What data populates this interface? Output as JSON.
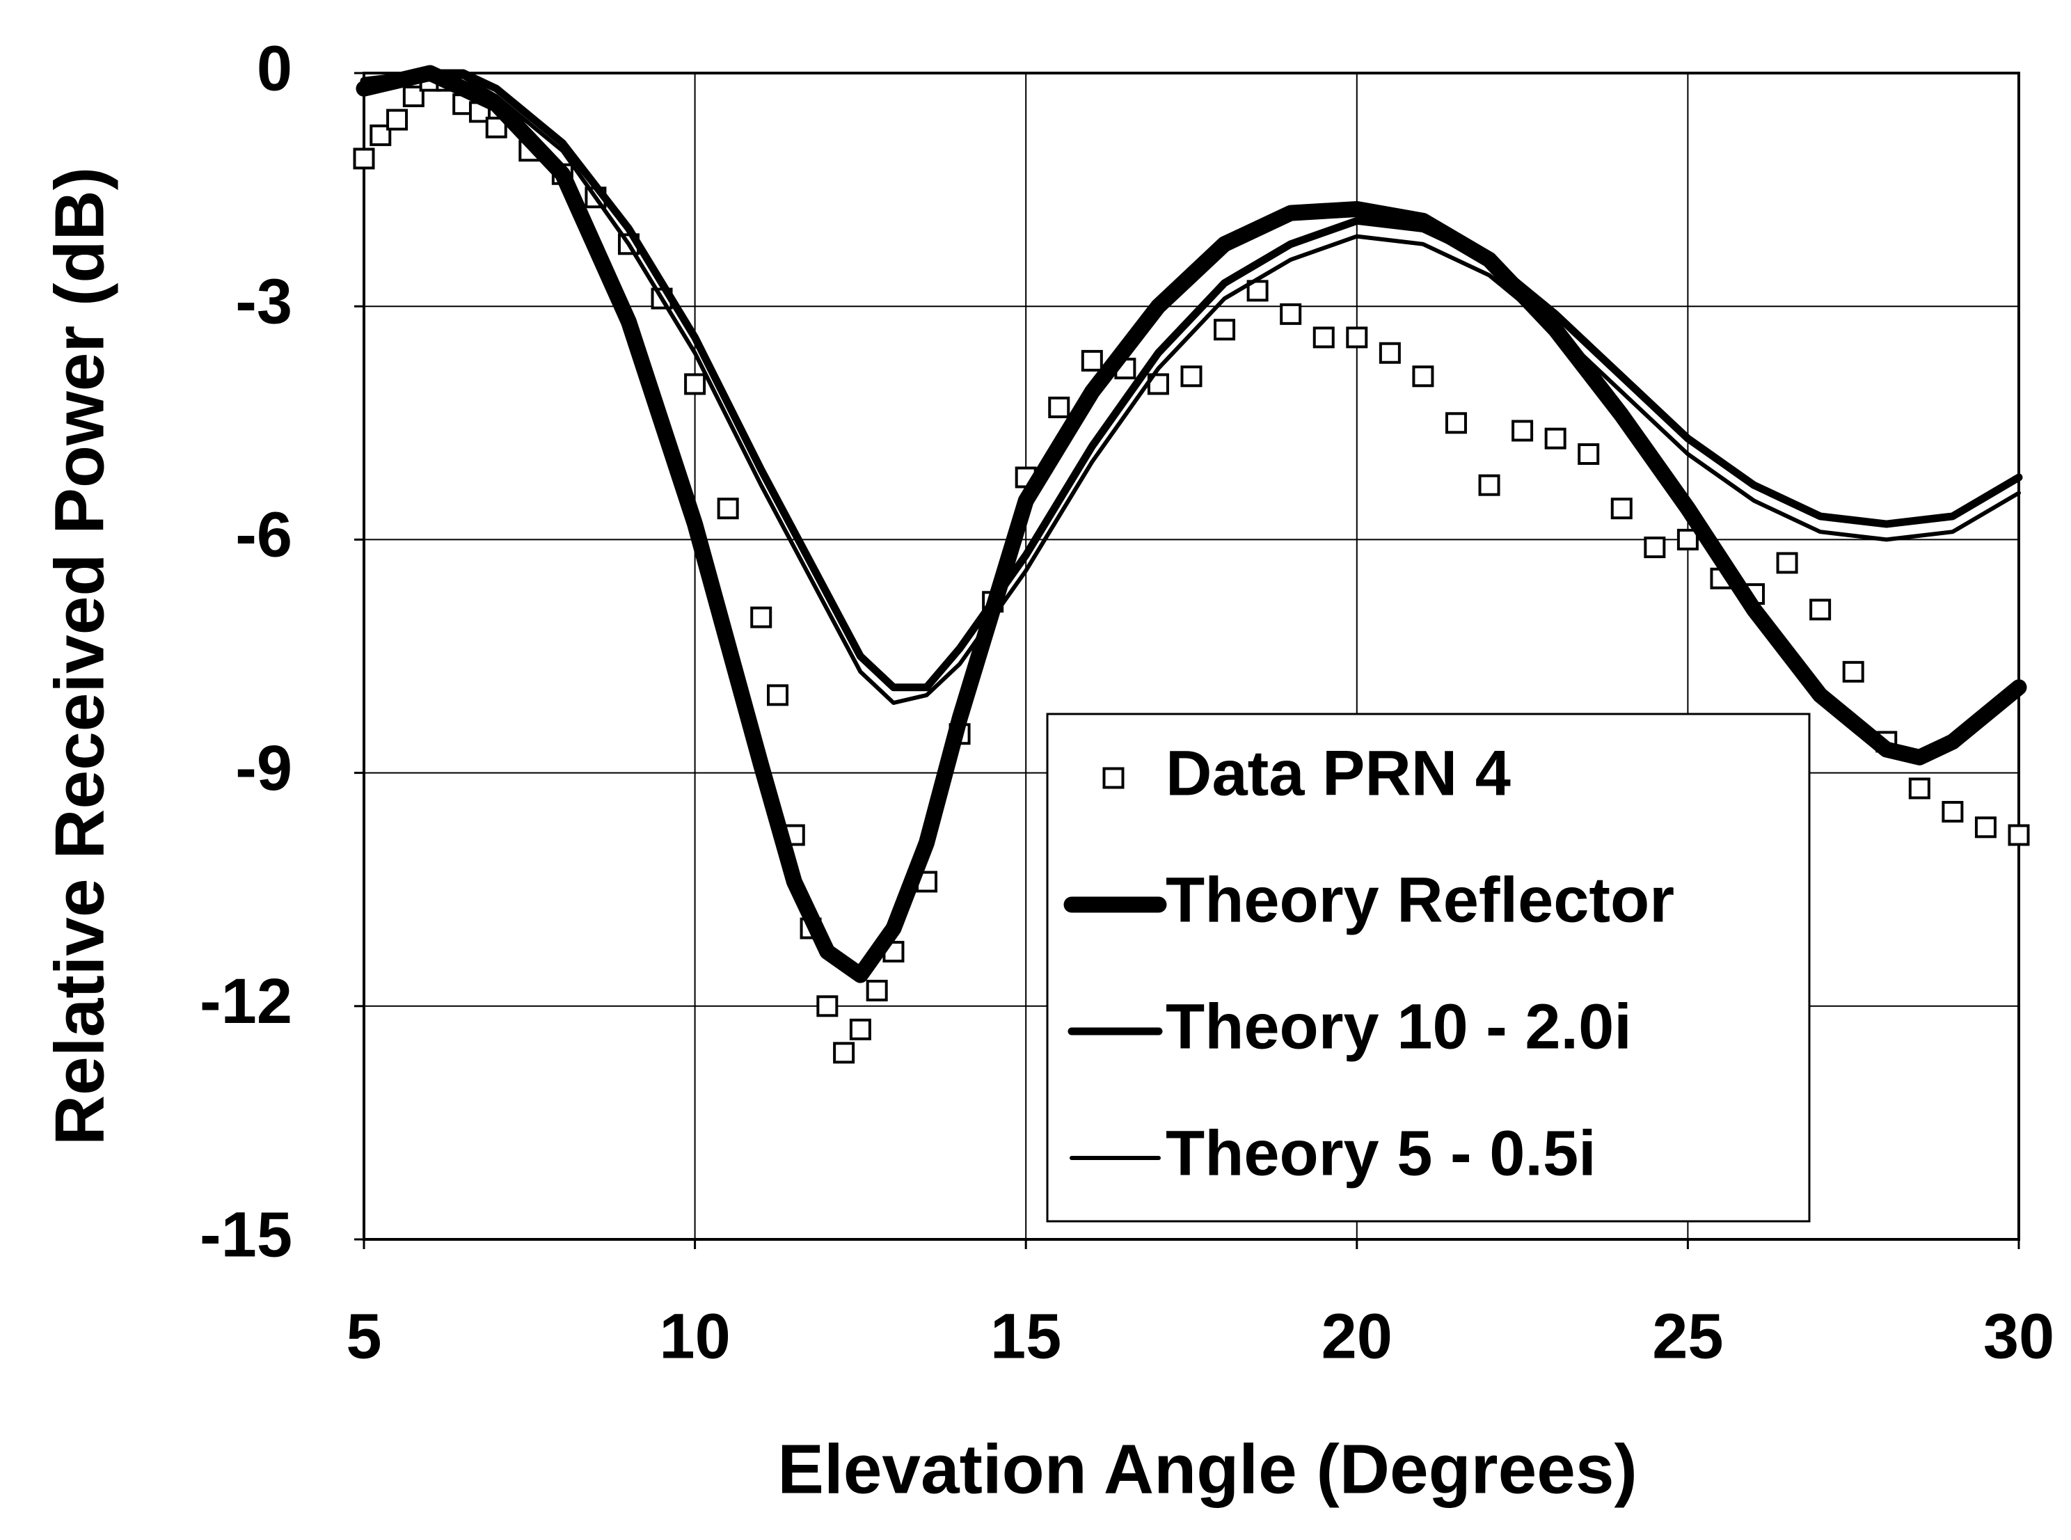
{
  "chart_data": {
    "type": "line",
    "x_label": "Elevation Angle (Degrees)",
    "y_label": "Relative Received Power (dB)",
    "xlim": [
      5,
      30
    ],
    "xticks": [
      5,
      10,
      15,
      20,
      25,
      30
    ],
    "ylim": [
      -15,
      0
    ],
    "yticks": [
      0,
      -3,
      -6,
      -9,
      -12,
      -15
    ],
    "grid": true,
    "legend": "lower right",
    "series": [
      {
        "name": "Data PRN 4",
        "color": "#000000",
        "marker": "square",
        "x": [
          5,
          5.25,
          5.5,
          5.75,
          6,
          6.25,
          6.5,
          6.75,
          7,
          7.5,
          8,
          8.5,
          9,
          9.5,
          10,
          10.5,
          11,
          11.25,
          11.5,
          11.75,
          12,
          12.25,
          12.5,
          12.75,
          13,
          13.5,
          14,
          14.5,
          15,
          15.5,
          16,
          16.5,
          17,
          17.5,
          18,
          18.5,
          19,
          19.5,
          20,
          20.5,
          21,
          21.5,
          22,
          22.5,
          23,
          23.5,
          24,
          24.5,
          25,
          25.5,
          26,
          26.5,
          27,
          27.5,
          28,
          28.5,
          29,
          29.5,
          30
        ],
        "values": [
          -1.1,
          -0.8,
          -0.6,
          -0.3,
          -0.1,
          -0.1,
          -0.4,
          -0.5,
          -0.7,
          -1.0,
          -1.3,
          -1.6,
          -2.2,
          -2.9,
          -4.0,
          -5.6,
          -7.0,
          -8.0,
          -9.8,
          -11.0,
          -12.0,
          -12.6,
          -12.3,
          -11.8,
          -11.3,
          -10.4,
          -8.5,
          -6.8,
          -5.2,
          -4.3,
          -3.7,
          -3.8,
          -4.0,
          -3.9,
          -3.3,
          -2.8,
          -3.1,
          -3.4,
          -3.4,
          -3.6,
          -3.9,
          -4.5,
          -5.3,
          -4.6,
          -4.7,
          -4.9,
          -5.6,
          -6.1,
          -6.0,
          -6.5,
          -6.7,
          -6.3,
          -6.9,
          -7.7,
          -8.6,
          -9.2,
          -9.5,
          -9.7,
          -9.8
        ]
      },
      {
        "name": "Theory Reflector",
        "color": "#000000",
        "x": [
          5,
          6,
          7,
          8,
          9,
          10,
          11,
          11.5,
          12,
          12.5,
          13,
          13.5,
          14,
          14.5,
          15,
          16,
          17,
          18,
          19,
          20,
          21,
          22,
          23,
          24,
          25,
          26,
          27,
          28,
          28.5,
          29,
          30
        ],
        "values": [
          -0.2,
          0,
          -0.4,
          -1.3,
          -3.2,
          -5.8,
          -8.9,
          -10.4,
          -11.3,
          -11.6,
          -11.0,
          -9.9,
          -8.3,
          -6.9,
          -5.5,
          -4.1,
          -3.0,
          -2.2,
          -1.8,
          -1.75,
          -1.9,
          -2.4,
          -3.3,
          -4.4,
          -5.6,
          -6.9,
          -8.0,
          -8.7,
          -8.8,
          -8.6,
          -7.9
        ]
      },
      {
        "name": "Theory 10 - 2.0i",
        "color": "#000000",
        "x": [
          5,
          6,
          6.5,
          7,
          8,
          9,
          10,
          11,
          12,
          12.5,
          13,
          13.5,
          14,
          15,
          16,
          17,
          18,
          19,
          20,
          21,
          22,
          23,
          24,
          25,
          26,
          27,
          28,
          29,
          30
        ],
        "values": [
          -0.1,
          0,
          0,
          -0.2,
          -0.9,
          -2.0,
          -3.4,
          -5.1,
          -6.7,
          -7.5,
          -7.9,
          -7.9,
          -7.4,
          -6.2,
          -4.8,
          -3.6,
          -2.7,
          -2.2,
          -1.9,
          -2.0,
          -2.4,
          -3.1,
          -3.9,
          -4.7,
          -5.3,
          -5.7,
          -5.8,
          -5.7,
          -5.2
        ]
      },
      {
        "name": "Theory 5 - 0.5i",
        "color": "#000000",
        "x": [
          5,
          6,
          6.5,
          7,
          8,
          9,
          10,
          11,
          12,
          12.5,
          13,
          13.5,
          14,
          15,
          16,
          17,
          18,
          19,
          20,
          21,
          22,
          23,
          24,
          25,
          26,
          27,
          28,
          29,
          30
        ],
        "values": [
          -0.1,
          0,
          -0.05,
          -0.3,
          -1.0,
          -2.2,
          -3.6,
          -5.3,
          -6.9,
          -7.7,
          -8.1,
          -8.0,
          -7.6,
          -6.4,
          -5.0,
          -3.8,
          -2.9,
          -2.4,
          -2.1,
          -2.2,
          -2.6,
          -3.3,
          -4.1,
          -4.9,
          -5.5,
          -5.9,
          -6.0,
          -5.9,
          -5.4
        ]
      }
    ]
  }
}
